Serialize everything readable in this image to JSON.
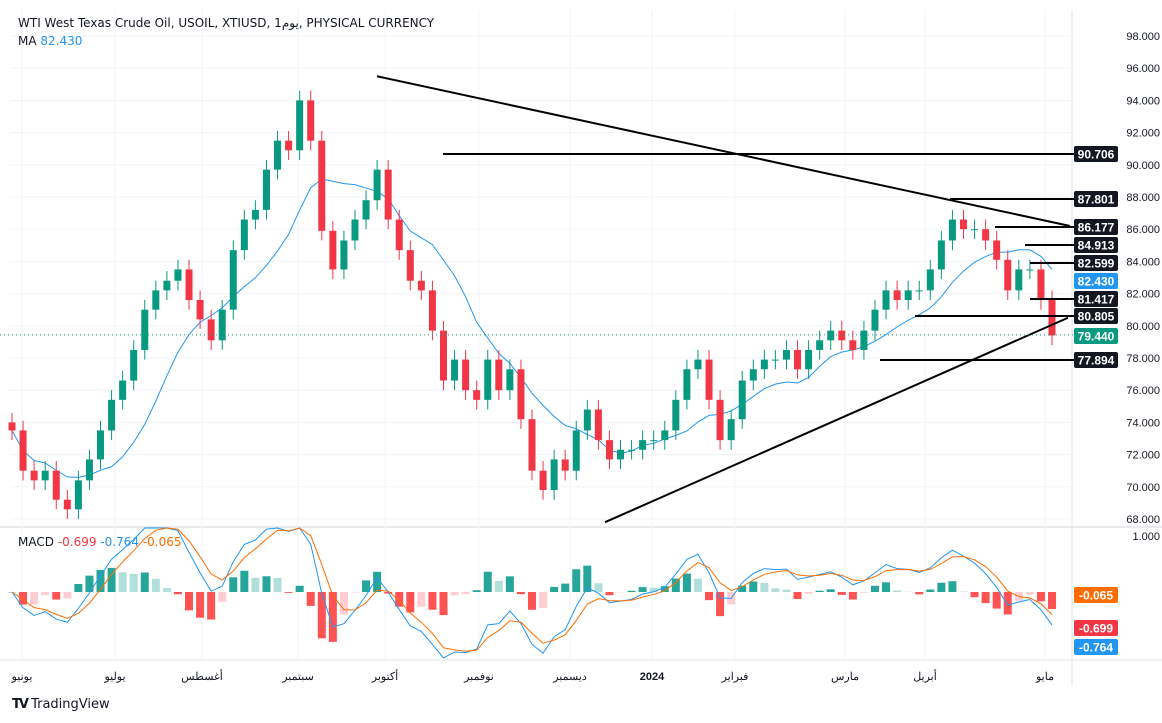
{
  "header": {
    "title": "WTI West Texas Crude Oil, USOIL, XTIUSD, 1يوم, PHYSICAL CURRENCY",
    "ma_label": "MA",
    "ma_value": "82.430"
  },
  "macd_legend": {
    "label": "MACD",
    "macd": "-0.699",
    "signal": "-0.764",
    "hist": "-0.065"
  },
  "brand": "TradingView",
  "colors": {
    "up": "#089981",
    "down": "#f23645",
    "ma": "#2196f3",
    "macd": "#2196f3",
    "signal": "#ff6d00",
    "tag": "#131722",
    "last": "#089981"
  },
  "chart_data": {
    "type": "candlestick",
    "price_ticks": [
      "98.000",
      "96.000",
      "94.000",
      "92.000",
      "90.000",
      "88.000",
      "86.000",
      "84.000",
      "82.000",
      "80.000",
      "78.000",
      "76.000",
      "74.000",
      "72.000",
      "70.000",
      "68.000"
    ],
    "ylim": [
      67.5,
      99.5
    ],
    "macd_ticks": [
      "1.000"
    ],
    "time_labels": [
      "يونيو",
      "يوليو",
      "أغسطس",
      "سبتمبر",
      "أكتوبر",
      "نوفمبر",
      "ديسمبر",
      "2024",
      "فبراير",
      "مارس",
      "أبريل",
      "مايو"
    ],
    "closes": [
      73.5,
      71.0,
      70.4,
      71.0,
      69.2,
      68.6,
      70.4,
      71.7,
      73.5,
      75.4,
      76.6,
      78.5,
      81.0,
      82.2,
      82.8,
      83.5,
      81.6,
      80.4,
      79.1,
      81.0,
      84.7,
      86.6,
      87.2,
      89.7,
      91.5,
      90.9,
      94.0,
      91.5,
      85.9,
      83.5,
      85.3,
      86.6,
      87.8,
      89.7,
      86.6,
      84.7,
      82.8,
      82.2,
      79.7,
      76.6,
      77.9,
      76.0,
      75.4,
      77.9,
      76.0,
      77.3,
      74.2,
      71.0,
      69.8,
      71.7,
      71.0,
      73.5,
      74.8,
      72.9,
      71.7,
      72.3,
      72.3,
      72.9,
      72.9,
      73.5,
      75.4,
      77.3,
      77.9,
      75.4,
      72.9,
      74.2,
      76.6,
      77.3,
      77.9,
      77.9,
      78.5,
      77.3,
      78.5,
      79.1,
      79.7,
      79.1,
      78.5,
      79.7,
      81.0,
      82.2,
      81.6,
      82.2,
      82.2,
      83.5,
      85.3,
      86.6,
      86.0,
      86.0,
      85.3,
      84.1,
      82.2,
      83.5,
      83.5,
      81.6,
      79.4
    ],
    "levels": [
      "90.706",
      "87.801",
      "86.177",
      "84.913",
      "82.599",
      "81.417",
      "80.805",
      "77.894"
    ],
    "ma_tag": "82.430",
    "last_price": "79.440",
    "trendline_down": [
      95.5,
      86.2
    ],
    "trendline_up": [
      67.8,
      80.5
    ],
    "macd_tags": {
      "hist": "-0.065",
      "macd": "-0.699",
      "signal": "-0.764"
    }
  }
}
